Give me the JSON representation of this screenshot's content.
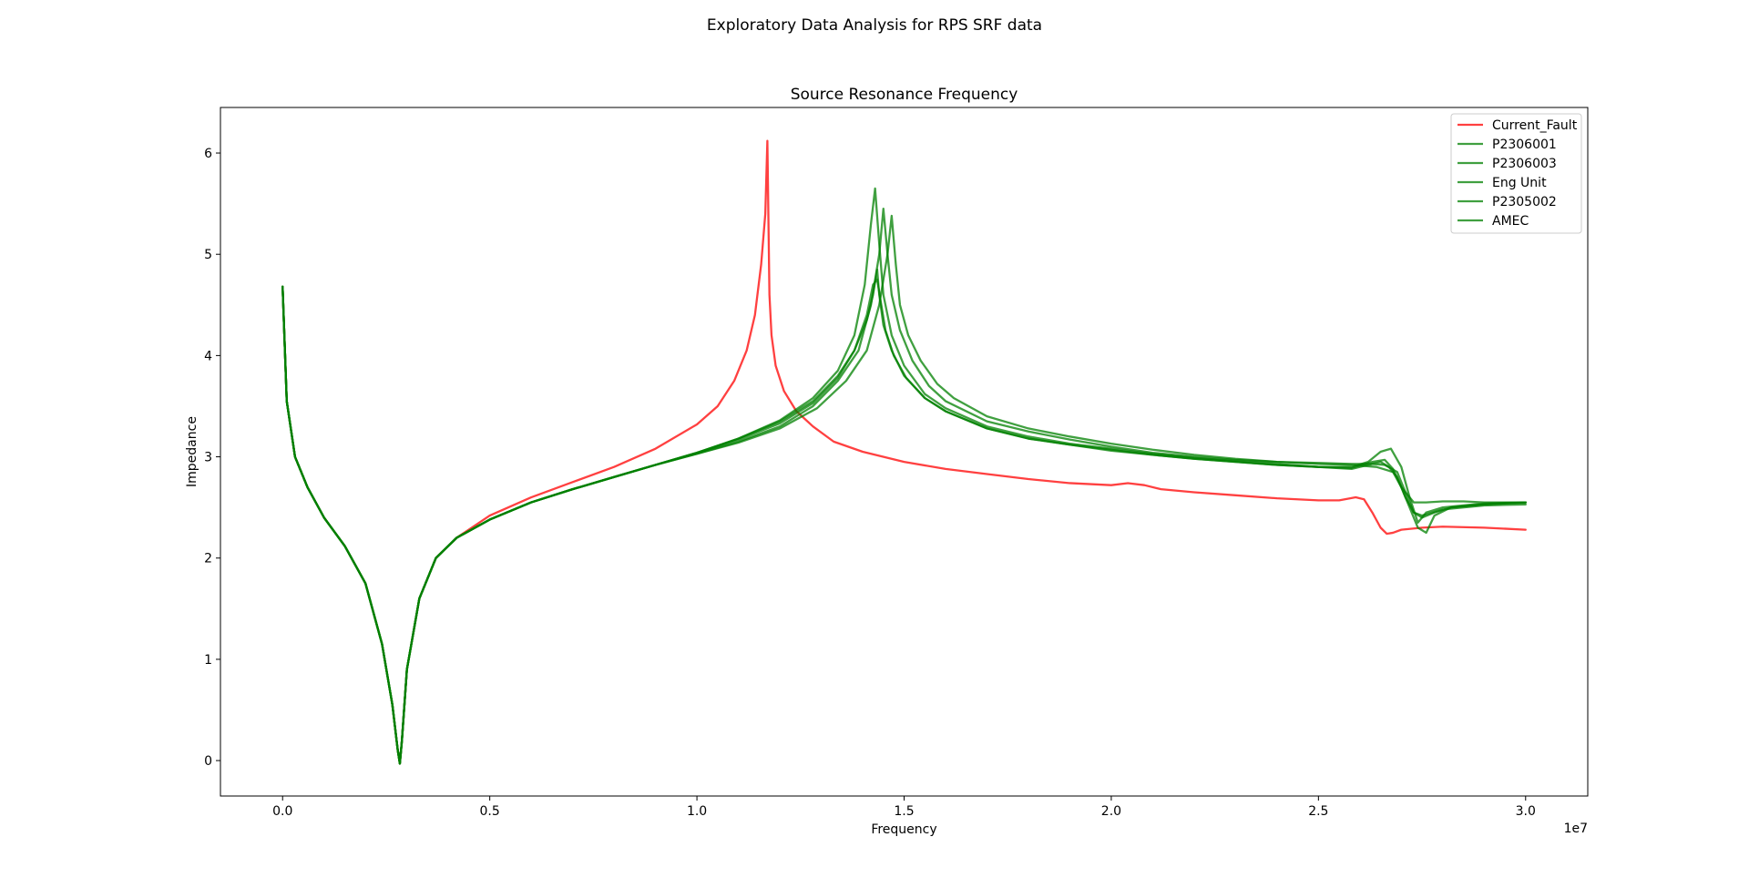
{
  "figure": {
    "suptitle": "Exploratory Data Analysis for RPS SRF data"
  },
  "chart_data": {
    "type": "line",
    "title": "Source Resonance Frequency",
    "xlabel": "Frequency",
    "ylabel": "Impedance",
    "x_offset_text": "1e7",
    "xlim": [
      -1500000,
      31500000
    ],
    "ylim": [
      -0.35,
      6.45
    ],
    "x_ticks": [
      0,
      5000000,
      10000000,
      15000000,
      20000000,
      25000000,
      30000000
    ],
    "x_tick_labels": [
      "0.0",
      "0.5",
      "1.0",
      "1.5",
      "2.0",
      "2.5",
      "3.0"
    ],
    "y_ticks": [
      0,
      1,
      2,
      3,
      4,
      5,
      6
    ],
    "y_tick_labels": [
      "0",
      "1",
      "2",
      "3",
      "4",
      "5",
      "6"
    ],
    "grid": false,
    "legend_position": "upper right",
    "colors": {
      "fault": "#ff0000",
      "unit": "#008000"
    },
    "series": [
      {
        "name": "Current_Fault",
        "color": "#ff0000",
        "x": [
          0,
          100000,
          300000,
          600000,
          1000000,
          1500000,
          2000000,
          2400000,
          2650000,
          2780000,
          2830000,
          2880000,
          3000000,
          3300000,
          3700000,
          4200000,
          5000000,
          6000000,
          7000000,
          8000000,
          9000000,
          10000000,
          10500000,
          10900000,
          11200000,
          11400000,
          11550000,
          11650000,
          11700000,
          11750000,
          11800000,
          11900000,
          12100000,
          12400000,
          12800000,
          13300000,
          14000000,
          15000000,
          16000000,
          17000000,
          18000000,
          19000000,
          20000000,
          20400000,
          20800000,
          21200000,
          22000000,
          23000000,
          24000000,
          25000000,
          25500000,
          25900000,
          26100000,
          26300000,
          26500000,
          26650000,
          26800000,
          27000000,
          27500000,
          28000000,
          29000000,
          30000000
        ],
        "y": [
          4.68,
          3.55,
          3.0,
          2.7,
          2.4,
          2.12,
          1.75,
          1.15,
          0.55,
          0.1,
          -0.03,
          0.2,
          0.9,
          1.6,
          2.0,
          2.2,
          2.42,
          2.6,
          2.75,
          2.9,
          3.08,
          3.32,
          3.5,
          3.75,
          4.05,
          4.4,
          4.9,
          5.4,
          6.12,
          4.6,
          4.2,
          3.9,
          3.65,
          3.45,
          3.3,
          3.15,
          3.05,
          2.95,
          2.88,
          2.83,
          2.78,
          2.74,
          2.72,
          2.74,
          2.72,
          2.68,
          2.65,
          2.62,
          2.59,
          2.57,
          2.57,
          2.6,
          2.58,
          2.45,
          2.3,
          2.24,
          2.25,
          2.28,
          2.3,
          2.31,
          2.3,
          2.28
        ]
      },
      {
        "name": "P2306001",
        "color": "#008000",
        "x": [
          0,
          100000,
          300000,
          600000,
          1000000,
          1500000,
          2000000,
          2400000,
          2650000,
          2780000,
          2830000,
          2880000,
          3000000,
          3300000,
          3700000,
          4200000,
          5000000,
          6000000,
          7000000,
          8000000,
          9000000,
          10000000,
          11000000,
          12000000,
          12800000,
          13400000,
          13800000,
          14100000,
          14250000,
          14350000,
          14400000,
          14500000,
          14700000,
          15000000,
          15500000,
          16000000,
          17000000,
          18000000,
          19000000,
          20000000,
          21000000,
          22000000,
          23000000,
          24000000,
          25000000,
          25800000,
          26200000,
          26500000,
          26700000,
          26900000,
          27100000,
          27300000,
          27500000,
          28000000,
          29000000,
          30000000
        ],
        "y": [
          4.68,
          3.55,
          3.0,
          2.7,
          2.4,
          2.12,
          1.75,
          1.15,
          0.55,
          0.1,
          -0.03,
          0.2,
          0.9,
          1.6,
          2.0,
          2.2,
          2.38,
          2.55,
          2.68,
          2.8,
          2.92,
          3.04,
          3.18,
          3.35,
          3.55,
          3.8,
          4.05,
          4.35,
          4.6,
          4.85,
          4.6,
          4.3,
          4.05,
          3.8,
          3.58,
          3.45,
          3.28,
          3.18,
          3.12,
          3.07,
          3.02,
          2.98,
          2.95,
          2.92,
          2.9,
          2.88,
          2.92,
          2.95,
          2.9,
          2.8,
          2.6,
          2.45,
          2.42,
          2.48,
          2.52,
          2.53
        ]
      },
      {
        "name": "P2306003",
        "color": "#008000",
        "x": [
          0,
          100000,
          300000,
          600000,
          1000000,
          1500000,
          2000000,
          2400000,
          2650000,
          2780000,
          2830000,
          2880000,
          3000000,
          3300000,
          3700000,
          4200000,
          5000000,
          6000000,
          7000000,
          8000000,
          9000000,
          10000000,
          11000000,
          12000000,
          12800000,
          13400000,
          13800000,
          14050000,
          14200000,
          14300000,
          14400000,
          14500000,
          14700000,
          15000000,
          15500000,
          16000000,
          17000000,
          18000000,
          19000000,
          20000000,
          21000000,
          22000000,
          23000000,
          24000000,
          25000000,
          25800000,
          26200000,
          26500000,
          26750000,
          27000000,
          27200000,
          27400000,
          27600000,
          28000000,
          29000000,
          30000000
        ],
        "y": [
          4.68,
          3.55,
          3.0,
          2.7,
          2.4,
          2.12,
          1.75,
          1.15,
          0.55,
          0.1,
          -0.03,
          0.2,
          0.9,
          1.6,
          2.0,
          2.2,
          2.38,
          2.55,
          2.68,
          2.8,
          2.92,
          3.04,
          3.18,
          3.36,
          3.58,
          3.85,
          4.2,
          4.7,
          5.3,
          5.65,
          5.1,
          4.6,
          4.2,
          3.9,
          3.62,
          3.48,
          3.3,
          3.2,
          3.13,
          3.08,
          3.03,
          2.99,
          2.96,
          2.93,
          2.9,
          2.9,
          2.95,
          3.05,
          3.08,
          2.9,
          2.6,
          2.35,
          2.45,
          2.5,
          2.54,
          2.55
        ]
      },
      {
        "name": "Eng Unit",
        "color": "#008000",
        "x": [
          0,
          100000,
          300000,
          600000,
          1000000,
          1500000,
          2000000,
          2400000,
          2650000,
          2780000,
          2830000,
          2880000,
          3000000,
          3300000,
          3700000,
          4200000,
          5000000,
          6000000,
          7000000,
          8000000,
          9000000,
          10000000,
          11000000,
          12000000,
          12800000,
          13400000,
          13900000,
          14200000,
          14400000,
          14500000,
          14600000,
          14700000,
          14900000,
          15200000,
          15600000,
          16000000,
          17000000,
          18000000,
          19000000,
          20000000,
          21000000,
          22000000,
          23000000,
          24000000,
          25000000,
          25800000,
          26300000,
          26600000,
          26900000,
          27100000,
          27300000,
          27500000,
          27800000,
          28200000,
          29000000,
          30000000
        ],
        "y": [
          4.68,
          3.55,
          3.0,
          2.7,
          2.4,
          2.12,
          1.75,
          1.15,
          0.55,
          0.1,
          -0.03,
          0.2,
          0.9,
          1.6,
          2.0,
          2.2,
          2.38,
          2.55,
          2.68,
          2.8,
          2.92,
          3.03,
          3.15,
          3.3,
          3.5,
          3.75,
          4.05,
          4.5,
          5.0,
          5.45,
          5.0,
          4.6,
          4.25,
          3.95,
          3.7,
          3.55,
          3.35,
          3.25,
          3.17,
          3.1,
          3.04,
          3.0,
          2.97,
          2.95,
          2.94,
          2.93,
          2.93,
          2.92,
          2.85,
          2.65,
          2.45,
          2.4,
          2.45,
          2.5,
          2.53,
          2.55
        ]
      },
      {
        "name": "P2305002",
        "color": "#008000",
        "x": [
          0,
          100000,
          300000,
          600000,
          1000000,
          1500000,
          2000000,
          2400000,
          2650000,
          2780000,
          2830000,
          2880000,
          3000000,
          3300000,
          3700000,
          4200000,
          5000000,
          6000000,
          7000000,
          8000000,
          9000000,
          10000000,
          11000000,
          12000000,
          12900000,
          13600000,
          14100000,
          14400000,
          14600000,
          14700000,
          14800000,
          14900000,
          15100000,
          15400000,
          15800000,
          16200000,
          17000000,
          18000000,
          19000000,
          20000000,
          21000000,
          22000000,
          23000000,
          24000000,
          25000000,
          25800000,
          26400000,
          26800000,
          27000000,
          27200000,
          27400000,
          27600000,
          27800000,
          28200000,
          29000000,
          30000000
        ],
        "y": [
          4.68,
          3.55,
          3.0,
          2.7,
          2.4,
          2.12,
          1.75,
          1.15,
          0.55,
          0.1,
          -0.03,
          0.2,
          0.9,
          1.6,
          2.0,
          2.2,
          2.38,
          2.55,
          2.68,
          2.8,
          2.92,
          3.03,
          3.14,
          3.28,
          3.48,
          3.75,
          4.05,
          4.5,
          5.0,
          5.38,
          4.9,
          4.5,
          4.2,
          3.95,
          3.72,
          3.58,
          3.4,
          3.28,
          3.2,
          3.13,
          3.07,
          3.02,
          2.98,
          2.95,
          2.93,
          2.92,
          2.9,
          2.85,
          2.7,
          2.5,
          2.3,
          2.25,
          2.42,
          2.5,
          2.53,
          2.55
        ]
      },
      {
        "name": "AMEC",
        "color": "#008000",
        "x": [
          0,
          100000,
          300000,
          600000,
          1000000,
          1500000,
          2000000,
          2400000,
          2650000,
          2780000,
          2830000,
          2880000,
          3000000,
          3300000,
          3700000,
          4200000,
          5000000,
          6000000,
          7000000,
          8000000,
          9000000,
          10000000,
          11000000,
          12000000,
          12800000,
          13400000,
          13800000,
          14100000,
          14250000,
          14350000,
          14450000,
          14550000,
          14750000,
          15050000,
          15500000,
          16000000,
          17000000,
          18000000,
          19000000,
          20000000,
          21000000,
          22000000,
          23000000,
          24000000,
          25000000,
          25800000,
          26300000,
          26600000,
          26800000,
          27000000,
          27300000,
          27600000,
          28000000,
          28500000,
          29000000,
          30000000
        ],
        "y": [
          4.68,
          3.55,
          3.0,
          2.7,
          2.4,
          2.12,
          1.75,
          1.15,
          0.55,
          0.1,
          -0.03,
          0.2,
          0.9,
          1.6,
          2.0,
          2.2,
          2.38,
          2.55,
          2.68,
          2.8,
          2.92,
          3.04,
          3.17,
          3.33,
          3.53,
          3.78,
          4.05,
          4.4,
          4.7,
          4.75,
          4.5,
          4.25,
          4.0,
          3.78,
          3.58,
          3.45,
          3.28,
          3.18,
          3.12,
          3.06,
          3.02,
          2.98,
          2.95,
          2.92,
          2.9,
          2.89,
          2.95,
          2.97,
          2.88,
          2.7,
          2.55,
          2.55,
          2.56,
          2.56,
          2.55,
          2.55
        ]
      }
    ]
  }
}
